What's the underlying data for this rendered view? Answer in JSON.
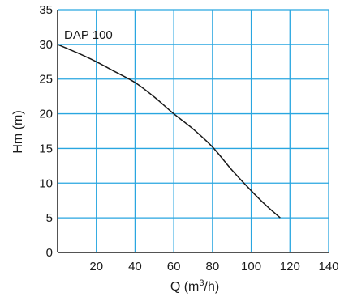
{
  "chart_data": {
    "type": "line",
    "title": "",
    "xlabel": {
      "prefix": "Q (m",
      "sup": "3",
      "suffix": "/h)"
    },
    "ylabel": "Hm (m)",
    "xlim": [
      0,
      140
    ],
    "ylim": [
      0,
      35
    ],
    "xticks": [
      20,
      40,
      60,
      80,
      100,
      120,
      140
    ],
    "yticks": [
      0,
      5,
      10,
      15,
      20,
      25,
      30,
      35
    ],
    "grid": true,
    "series": [
      {
        "name": "DAP 100",
        "x": [
          0,
          10,
          20,
          30,
          40,
          50,
          60,
          70,
          80,
          90,
          100,
          108,
          115
        ],
        "y": [
          30,
          28.8,
          27.5,
          26.0,
          24.5,
          22.4,
          20.0,
          17.8,
          15.2,
          11.9,
          8.9,
          6.7,
          5.0
        ]
      }
    ],
    "colors": {
      "grid": "#29a6e0",
      "line": "#1a1a1a",
      "axis": "#1a1a1a"
    }
  }
}
